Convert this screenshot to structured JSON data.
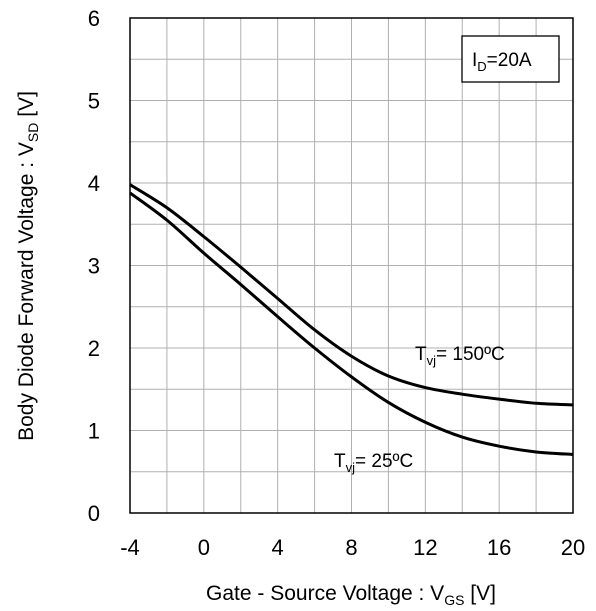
{
  "chart_data": {
    "type": "line",
    "xlabel": {
      "main": "Gate - Source Voltage : V",
      "sub": "GS",
      "unit": " [V]"
    },
    "ylabel": {
      "main": "Body Diode  Forward Voltage : V",
      "sub": "SD",
      "unit": " [V]"
    },
    "xlim": [
      -4,
      20
    ],
    "ylim": [
      0,
      6
    ],
    "xticks": [
      -4,
      -2,
      0,
      2,
      4,
      6,
      8,
      10,
      12,
      14,
      16,
      18,
      20
    ],
    "xtick_labels": [
      "-4",
      "",
      "0",
      "",
      "4",
      "",
      "8",
      "",
      "12",
      "",
      "16",
      "",
      "20"
    ],
    "yticks": [
      0,
      0.5,
      1,
      1.5,
      2,
      2.5,
      3,
      3.5,
      4,
      4.5,
      5,
      5.5,
      6
    ],
    "ytick_labels": [
      "0",
      "",
      "1",
      "",
      "2",
      "",
      "3",
      "",
      "4",
      "",
      "5",
      "",
      "6"
    ],
    "grid": true,
    "condition_box": {
      "main": "I",
      "sub": "D",
      "rest": "=20A"
    },
    "series": [
      {
        "label_main": "T",
        "label_sub": "vj",
        "label_rest": "= 150ºC",
        "color": "#000000",
        "x": [
          -4,
          -2,
          0,
          2,
          4,
          6,
          8,
          10,
          12,
          14,
          16,
          18,
          20
        ],
        "y": [
          3.98,
          3.7,
          3.35,
          2.98,
          2.6,
          2.22,
          1.9,
          1.66,
          1.52,
          1.44,
          1.38,
          1.33,
          1.31
        ]
      },
      {
        "label_main": "T",
        "label_sub": "vj",
        "label_rest": "= 25ºC",
        "color": "#000000",
        "x": [
          -4,
          -2,
          0,
          2,
          4,
          6,
          8,
          10,
          12,
          14,
          16,
          18,
          20
        ],
        "y": [
          3.88,
          3.55,
          3.15,
          2.77,
          2.38,
          2.0,
          1.65,
          1.34,
          1.1,
          0.92,
          0.81,
          0.74,
          0.71
        ]
      }
    ]
  }
}
